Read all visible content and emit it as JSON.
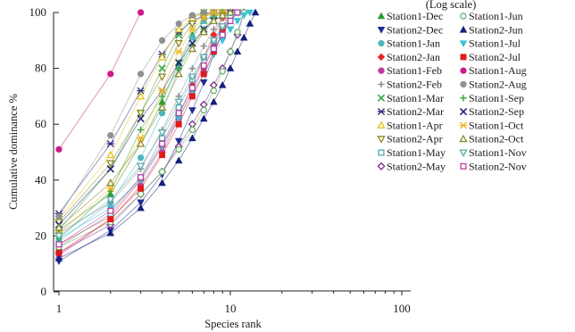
{
  "chart_data": {
    "type": "line",
    "title": "(Log scale)",
    "xlabel": "Species rank",
    "ylabel": "Cumulative dominance %",
    "x_scale": "log",
    "xlim": [
      1,
      100
    ],
    "ylim": [
      0,
      100
    ],
    "x_ticks": [
      "1",
      "10",
      "100"
    ],
    "y_ticks": [
      "0",
      "20",
      "40",
      "60",
      "80",
      "100"
    ],
    "legend_position": "right",
    "grid": false,
    "series": [
      {
        "name": "Station1-Dec",
        "color": "#2e9a2e",
        "marker": "triangle-up-filled",
        "x": [
          1,
          2,
          3,
          4,
          5,
          6,
          7,
          8,
          9,
          10
        ],
        "y": [
          22,
          35,
          53,
          68,
          82,
          92,
          97,
          99,
          100,
          100
        ]
      },
      {
        "name": "Station2-Dec",
        "color": "#1f2f8f",
        "marker": "triangle-down-filled",
        "x": [
          1,
          2,
          3,
          4,
          5,
          6,
          7,
          8,
          9,
          10,
          11
        ],
        "y": [
          11,
          22,
          32,
          42,
          54,
          65,
          75,
          85,
          93,
          98,
          100
        ]
      },
      {
        "name": "Station1-Jan",
        "color": "#4fb5bd",
        "marker": "circle-filled",
        "x": [
          1,
          2,
          3,
          4,
          5,
          6,
          7,
          8,
          9
        ],
        "y": [
          18,
          32,
          48,
          64,
          80,
          91,
          97,
          99,
          100
        ]
      },
      {
        "name": "Station2-Jan",
        "color": "#e8252c",
        "marker": "diamond-filled",
        "x": [
          1,
          2,
          3,
          4,
          5,
          6,
          7,
          8,
          9,
          10
        ],
        "y": [
          17,
          27,
          40,
          52,
          63,
          74,
          84,
          92,
          98,
          100
        ]
      },
      {
        "name": "Station1-Feb",
        "color": "#c23a9e",
        "marker": "circle-filled",
        "x": [
          1,
          2,
          3,
          4,
          5,
          6,
          7,
          8,
          9,
          10
        ],
        "y": [
          13,
          26,
          38,
          50,
          62,
          72,
          80,
          88,
          95,
          100
        ]
      },
      {
        "name": "Station2-Feb",
        "color": "#8c8c8c",
        "marker": "plus",
        "x": [
          1,
          2,
          3,
          4,
          5,
          6,
          7,
          8,
          9,
          10
        ],
        "y": [
          21,
          32,
          44,
          58,
          70,
          80,
          88,
          94,
          98,
          100
        ]
      },
      {
        "name": "Station1-Mar",
        "color": "#3aa54a",
        "marker": "x",
        "x": [
          1,
          2,
          3,
          4,
          5,
          6,
          7,
          8
        ],
        "y": [
          22,
          44,
          64,
          80,
          92,
          98,
          100,
          100
        ]
      },
      {
        "name": "Station2-Mar",
        "color": "#2c2f7a",
        "marker": "asterisk",
        "x": [
          1,
          2,
          3,
          4,
          5,
          6,
          7,
          8,
          9
        ],
        "y": [
          28,
          53,
          72,
          85,
          93,
          97,
          99,
          100,
          100
        ]
      },
      {
        "name": "Station1-Apr",
        "color": "#e3c21a",
        "marker": "triangle-up-open",
        "x": [
          1,
          2,
          3,
          4,
          5,
          6,
          7,
          8,
          9
        ],
        "y": [
          26,
          49,
          70,
          84,
          94,
          98,
          100,
          100,
          100
        ]
      },
      {
        "name": "Station2-Apr",
        "color": "#8a8a1e",
        "marker": "triangle-down-open",
        "x": [
          1,
          2,
          3,
          4,
          5,
          6,
          7,
          8,
          9
        ],
        "y": [
          25,
          46,
          64,
          77,
          89,
          96,
          99,
          100,
          100
        ]
      },
      {
        "name": "Station1-May",
        "color": "#4fa8a8",
        "marker": "square-open",
        "x": [
          1,
          2,
          3,
          4,
          5,
          6,
          7,
          8,
          9,
          10,
          11
        ],
        "y": [
          16,
          28,
          41,
          55,
          66,
          76,
          84,
          90,
          95,
          98,
          100
        ]
      },
      {
        "name": "Station2-May",
        "color": "#7a2a8a",
        "marker": "diamond-open",
        "x": [
          1,
          2,
          3,
          4,
          5,
          6,
          7,
          8,
          9,
          10,
          11,
          12
        ],
        "y": [
          14,
          24,
          35,
          43,
          52,
          60,
          67,
          74,
          80,
          86,
          92,
          100
        ]
      },
      {
        "name": "Station1-Jun",
        "color": "#6ab06a",
        "marker": "circle-open",
        "x": [
          1,
          2,
          3,
          4,
          5,
          6,
          7,
          8,
          9,
          10,
          11,
          12
        ],
        "y": [
          16,
          25,
          35,
          43,
          51,
          58,
          65,
          72,
          79,
          86,
          93,
          100
        ]
      },
      {
        "name": "Station2-Jun",
        "color": "#14207a",
        "marker": "triangle-up-filled",
        "x": [
          1,
          2,
          3,
          4,
          5,
          6,
          7,
          8,
          9,
          10,
          11,
          12,
          13,
          14
        ],
        "y": [
          12,
          21,
          30,
          39,
          47,
          55,
          62,
          68,
          74,
          80,
          86,
          91,
          96,
          100
        ]
      },
      {
        "name": "Station1-Jul",
        "color": "#39c3d8",
        "marker": "triangle-down-filled",
        "x": [
          1,
          2,
          3,
          4,
          5,
          6,
          7,
          8,
          9,
          10,
          11,
          12,
          13
        ],
        "y": [
          19,
          30,
          40,
          52,
          62,
          71,
          78,
          85,
          90,
          94,
          97,
          99,
          100
        ]
      },
      {
        "name": "Station2-Jul",
        "color": "#e01a1a",
        "marker": "square-filled",
        "x": [
          1,
          2,
          3,
          4,
          5,
          6,
          7,
          8,
          9,
          10,
          11
        ],
        "y": [
          14,
          26,
          37,
          49,
          60,
          70,
          78,
          86,
          93,
          97,
          100
        ]
      },
      {
        "name": "Station1-Aug",
        "color": "#d01b8a",
        "marker": "circle-filled",
        "x": [
          1,
          2,
          3
        ],
        "y": [
          51,
          78,
          100
        ]
      },
      {
        "name": "Station2-Aug",
        "color": "#909090",
        "marker": "circle-filled",
        "x": [
          1,
          2,
          3,
          4,
          5,
          6,
          7,
          8
        ],
        "y": [
          27,
          56,
          78,
          90,
          96,
          99,
          100,
          100
        ]
      },
      {
        "name": "Station1-Sep",
        "color": "#3fa83f",
        "marker": "plus",
        "x": [
          1,
          2,
          3,
          4,
          5,
          6,
          7,
          8,
          9,
          10
        ],
        "y": [
          19,
          36,
          58,
          70,
          80,
          88,
          94,
          98,
          100,
          100
        ]
      },
      {
        "name": "Station2-Sep",
        "color": "#25277a",
        "marker": "x",
        "x": [
          1,
          2,
          3,
          4,
          5,
          6,
          7,
          8,
          9,
          10
        ],
        "y": [
          24,
          44,
          62,
          72,
          82,
          89,
          94,
          97,
          99,
          100
        ]
      },
      {
        "name": "Station1-Oct",
        "color": "#f0b420",
        "marker": "asterisk",
        "x": [
          1,
          2,
          3,
          4,
          5,
          6,
          7,
          8,
          9
        ],
        "y": [
          21,
          37,
          55,
          72,
          86,
          94,
          98,
          100,
          100
        ]
      },
      {
        "name": "Station2-Oct",
        "color": "#8a8a2a",
        "marker": "triangle-up-open",
        "x": [
          1,
          2,
          3,
          4,
          5,
          6,
          7,
          8,
          9,
          10
        ],
        "y": [
          23,
          39,
          53,
          66,
          78,
          87,
          93,
          97,
          99,
          100
        ]
      },
      {
        "name": "Station1-Nov",
        "color": "#5aaab0",
        "marker": "triangle-down-open",
        "x": [
          1,
          2,
          3,
          4,
          5,
          6,
          7,
          8,
          9,
          10,
          11
        ],
        "y": [
          20,
          33,
          45,
          57,
          68,
          77,
          84,
          90,
          95,
          98,
          100
        ]
      },
      {
        "name": "Station2-Nov",
        "color": "#b040a0",
        "marker": "square-open",
        "x": [
          1,
          2,
          3,
          4,
          5,
          6,
          7,
          8,
          9,
          10,
          11
        ],
        "y": [
          17,
          29,
          41,
          53,
          64,
          73,
          81,
          87,
          92,
          97,
          100
        ]
      }
    ]
  }
}
